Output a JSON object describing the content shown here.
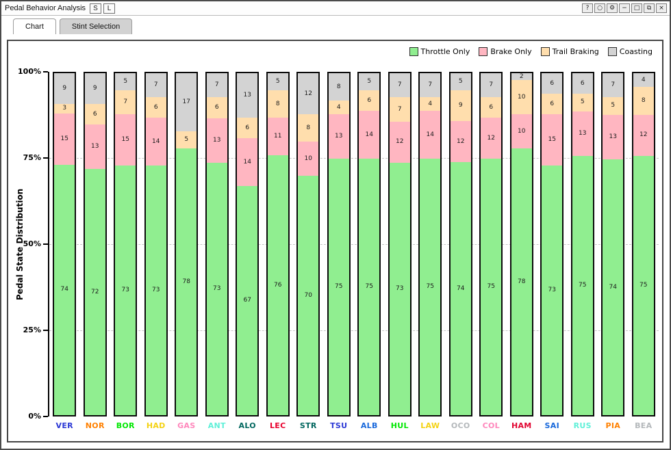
{
  "window": {
    "title": "Pedal Behavior Analysis",
    "titlebar_buttons": [
      {
        "label": "S"
      },
      {
        "label": "L"
      }
    ],
    "controls": [
      {
        "name": "help-button",
        "icon": "question-icon",
        "glyph": "?"
      },
      {
        "name": "circle-button",
        "icon": "circle-icon",
        "glyph": "○"
      },
      {
        "name": "settings-button",
        "icon": "gear-icon",
        "glyph": "⚙"
      },
      {
        "name": "minimize-button",
        "icon": "minimize-icon",
        "glyph": "−"
      },
      {
        "name": "maximize-button",
        "icon": "maximize-icon",
        "glyph": "□"
      },
      {
        "name": "restore-button",
        "icon": "restore-icon",
        "glyph": "⧉"
      },
      {
        "name": "close-button",
        "icon": "close-icon",
        "glyph": "×"
      }
    ]
  },
  "tabs": [
    {
      "label": "Chart",
      "active": true
    },
    {
      "label": "Stint Selection",
      "active": false
    }
  ],
  "chart_data": {
    "type": "bar",
    "stacked": true,
    "ylabel": "Pedal State Distribution",
    "xlabel": "",
    "ylim": [
      0,
      100
    ],
    "yticks": [
      {
        "label": "0%",
        "value": 0
      },
      {
        "label": "25%",
        "value": 25
      },
      {
        "label": "50%",
        "value": 50
      },
      {
        "label": "75%",
        "value": 75
      },
      {
        "label": "100%",
        "value": 100
      }
    ],
    "gridlines": {
      "style": "dashed",
      "color": "#c6c6c6",
      "at": [
        25,
        50,
        75
      ]
    },
    "legend_position": "top-right",
    "categories": [
      "VER",
      "NOR",
      "BOR",
      "HAD",
      "GAS",
      "ANT",
      "ALO",
      "LEC",
      "STR",
      "TSU",
      "ALB",
      "HUL",
      "LAW",
      "OCO",
      "COL",
      "HAM",
      "SAI",
      "RUS",
      "PIA",
      "BEA"
    ],
    "category_colors": [
      "#2b38d5",
      "#ff8000",
      "#00e701",
      "#f4d213",
      "#ff87bc",
      "#5ff0d8",
      "#00665e",
      "#e8002d",
      "#00665e",
      "#2b38d5",
      "#1868db",
      "#00e701",
      "#f4d213",
      "#b4b8bb",
      "#ff87bc",
      "#e10531",
      "#1868db",
      "#5ff0d8",
      "#ff8000",
      "#b4b8bb"
    ],
    "series": [
      {
        "name": "Throttle Only",
        "color": "#90ee90",
        "values": [
          74,
          72,
          73,
          73,
          78,
          73,
          67,
          76,
          70,
          75,
          75,
          73,
          75,
          74,
          75,
          78,
          73,
          75,
          74,
          75
        ]
      },
      {
        "name": "Brake Only",
        "color": "#ffb6c1",
        "values": [
          15,
          13,
          15,
          14,
          0,
          13,
          14,
          11,
          10,
          13,
          14,
          12,
          14,
          12,
          12,
          10,
          15,
          13,
          13,
          12
        ]
      },
      {
        "name": "Trail Braking",
        "color": "#ffdead",
        "values": [
          3,
          6,
          7,
          6,
          5,
          6,
          6,
          8,
          8,
          4,
          6,
          7,
          4,
          9,
          6,
          10,
          6,
          5,
          5,
          8
        ]
      },
      {
        "name": "Coasting",
        "color": "#d3d3d3",
        "values": [
          9,
          9,
          5,
          7,
          17,
          7,
          13,
          5,
          12,
          8,
          5,
          7,
          7,
          5,
          7,
          2,
          6,
          6,
          7,
          4
        ]
      }
    ]
  }
}
